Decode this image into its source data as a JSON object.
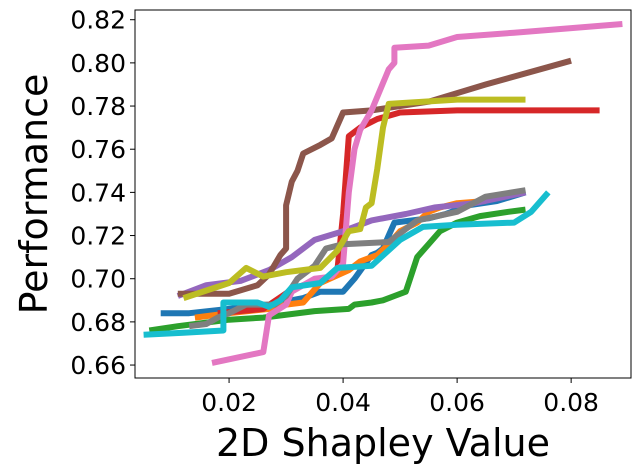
{
  "chart_data": {
    "type": "line",
    "title": "",
    "xlabel": "2D Shapley Value",
    "ylabel": "Performance",
    "xlim": [
      0.0035,
      0.0905
    ],
    "ylim": [
      0.654,
      0.8245
    ],
    "xticks": [
      0.02,
      0.04,
      0.06,
      0.08
    ],
    "xtick_labels": [
      "0.02",
      "0.04",
      "0.06",
      "0.08"
    ],
    "yticks": [
      0.66,
      0.68,
      0.7,
      0.72,
      0.74,
      0.76,
      0.78,
      0.8,
      0.82
    ],
    "ytick_labels": [
      "0.66",
      "0.68",
      "0.70",
      "0.72",
      "0.74",
      "0.76",
      "0.78",
      "0.80",
      "0.82"
    ],
    "grid": false,
    "legend": "none",
    "series": [
      {
        "name": "blue",
        "color": "#1f77b4",
        "points": [
          [
            0.008,
            0.684
          ],
          [
            0.013,
            0.684
          ],
          [
            0.02,
            0.686
          ],
          [
            0.027,
            0.688
          ],
          [
            0.033,
            0.691
          ],
          [
            0.036,
            0.694
          ],
          [
            0.04,
            0.694
          ],
          [
            0.042,
            0.7
          ],
          [
            0.045,
            0.711
          ],
          [
            0.046,
            0.712
          ],
          [
            0.047,
            0.714
          ],
          [
            0.048,
            0.72
          ],
          [
            0.049,
            0.726
          ],
          [
            0.055,
            0.728
          ],
          [
            0.058,
            0.73
          ],
          [
            0.062,
            0.734
          ],
          [
            0.067,
            0.736
          ],
          [
            0.072,
            0.74
          ]
        ]
      },
      {
        "name": "orange",
        "color": "#ff7f0e",
        "points": [
          [
            0.014,
            0.682
          ],
          [
            0.02,
            0.684
          ],
          [
            0.027,
            0.686
          ],
          [
            0.03,
            0.688
          ],
          [
            0.033,
            0.689
          ],
          [
            0.036,
            0.698
          ],
          [
            0.041,
            0.704
          ],
          [
            0.043,
            0.708
          ],
          [
            0.046,
            0.711
          ],
          [
            0.048,
            0.716
          ],
          [
            0.05,
            0.722
          ],
          [
            0.053,
            0.726
          ],
          [
            0.055,
            0.731
          ],
          [
            0.057,
            0.733
          ],
          [
            0.06,
            0.735
          ],
          [
            0.065,
            0.736
          ]
        ]
      },
      {
        "name": "green",
        "color": "#2ca02c",
        "points": [
          [
            0.006,
            0.676
          ],
          [
            0.011,
            0.678
          ],
          [
            0.02,
            0.681
          ],
          [
            0.026,
            0.682
          ],
          [
            0.035,
            0.685
          ],
          [
            0.041,
            0.686
          ],
          [
            0.042,
            0.688
          ],
          [
            0.045,
            0.689
          ],
          [
            0.047,
            0.69
          ],
          [
            0.049,
            0.692
          ],
          [
            0.051,
            0.694
          ],
          [
            0.052,
            0.702
          ],
          [
            0.053,
            0.71
          ],
          [
            0.055,
            0.716
          ],
          [
            0.057,
            0.722
          ],
          [
            0.06,
            0.726
          ],
          [
            0.064,
            0.729
          ],
          [
            0.069,
            0.731
          ],
          [
            0.072,
            0.732
          ]
        ]
      },
      {
        "name": "red",
        "color": "#d62728",
        "points": [
          [
            0.018,
            0.684
          ],
          [
            0.026,
            0.686
          ],
          [
            0.031,
            0.695
          ],
          [
            0.034,
            0.698
          ],
          [
            0.037,
            0.7
          ],
          [
            0.039,
            0.704
          ],
          [
            0.04,
            0.73
          ],
          [
            0.041,
            0.766
          ],
          [
            0.043,
            0.77
          ],
          [
            0.046,
            0.774
          ],
          [
            0.05,
            0.777
          ],
          [
            0.06,
            0.778
          ],
          [
            0.07,
            0.778
          ],
          [
            0.085,
            0.778
          ]
        ]
      },
      {
        "name": "purple",
        "color": "#9467bd",
        "points": [
          [
            0.011,
            0.692
          ],
          [
            0.016,
            0.697
          ],
          [
            0.022,
            0.699
          ],
          [
            0.027,
            0.704
          ],
          [
            0.031,
            0.71
          ],
          [
            0.035,
            0.718
          ],
          [
            0.04,
            0.722
          ],
          [
            0.045,
            0.727
          ],
          [
            0.051,
            0.73
          ],
          [
            0.056,
            0.733
          ],
          [
            0.063,
            0.735
          ],
          [
            0.072,
            0.74
          ]
        ]
      },
      {
        "name": "brown",
        "color": "#8c564b",
        "points": [
          [
            0.011,
            0.693
          ],
          [
            0.02,
            0.693
          ],
          [
            0.025,
            0.697
          ],
          [
            0.027,
            0.702
          ],
          [
            0.029,
            0.711
          ],
          [
            0.03,
            0.714
          ],
          [
            0.03,
            0.734
          ],
          [
            0.031,
            0.745
          ],
          [
            0.032,
            0.75
          ],
          [
            0.033,
            0.758
          ],
          [
            0.036,
            0.762
          ],
          [
            0.038,
            0.765
          ],
          [
            0.04,
            0.777
          ],
          [
            0.045,
            0.778
          ],
          [
            0.05,
            0.78
          ],
          [
            0.055,
            0.782
          ],
          [
            0.06,
            0.786
          ],
          [
            0.065,
            0.79
          ],
          [
            0.08,
            0.801
          ]
        ]
      },
      {
        "name": "pink",
        "color": "#e377c2",
        "points": [
          [
            0.017,
            0.661
          ],
          [
            0.026,
            0.666
          ],
          [
            0.027,
            0.683
          ],
          [
            0.03,
            0.688
          ],
          [
            0.031,
            0.694
          ],
          [
            0.033,
            0.697
          ],
          [
            0.035,
            0.7
          ],
          [
            0.038,
            0.701
          ],
          [
            0.04,
            0.707
          ],
          [
            0.041,
            0.74
          ],
          [
            0.042,
            0.76
          ],
          [
            0.043,
            0.769
          ],
          [
            0.045,
            0.778
          ],
          [
            0.048,
            0.797
          ],
          [
            0.049,
            0.8
          ],
          [
            0.049,
            0.807
          ],
          [
            0.055,
            0.808
          ],
          [
            0.06,
            0.812
          ],
          [
            0.07,
            0.814
          ],
          [
            0.089,
            0.818
          ]
        ]
      },
      {
        "name": "gray",
        "color": "#7f7f7f",
        "points": [
          [
            0.013,
            0.678
          ],
          [
            0.016,
            0.679
          ],
          [
            0.018,
            0.682
          ],
          [
            0.02,
            0.684
          ],
          [
            0.023,
            0.688
          ],
          [
            0.028,
            0.688
          ],
          [
            0.03,
            0.692
          ],
          [
            0.032,
            0.7
          ],
          [
            0.035,
            0.706
          ],
          [
            0.037,
            0.714
          ],
          [
            0.04,
            0.716
          ],
          [
            0.048,
            0.717
          ],
          [
            0.053,
            0.727
          ],
          [
            0.06,
            0.731
          ],
          [
            0.065,
            0.738
          ],
          [
            0.072,
            0.741
          ]
        ]
      },
      {
        "name": "olive",
        "color": "#bcbd22",
        "points": [
          [
            0.012,
            0.691
          ],
          [
            0.02,
            0.698
          ],
          [
            0.023,
            0.705
          ],
          [
            0.026,
            0.701
          ],
          [
            0.03,
            0.703
          ],
          [
            0.036,
            0.705
          ],
          [
            0.039,
            0.713
          ],
          [
            0.041,
            0.722
          ],
          [
            0.043,
            0.723
          ],
          [
            0.044,
            0.733
          ],
          [
            0.045,
            0.735
          ],
          [
            0.046,
            0.751
          ],
          [
            0.047,
            0.77
          ],
          [
            0.048,
            0.781
          ],
          [
            0.06,
            0.783
          ],
          [
            0.072,
            0.783
          ]
        ]
      },
      {
        "name": "cyan",
        "color": "#17becf",
        "points": [
          [
            0.005,
            0.674
          ],
          [
            0.012,
            0.675
          ],
          [
            0.019,
            0.676
          ],
          [
            0.019,
            0.689
          ],
          [
            0.025,
            0.689
          ],
          [
            0.027,
            0.687
          ],
          [
            0.029,
            0.69
          ],
          [
            0.031,
            0.696
          ],
          [
            0.036,
            0.698
          ],
          [
            0.039,
            0.705
          ],
          [
            0.045,
            0.706
          ],
          [
            0.05,
            0.718
          ],
          [
            0.054,
            0.724
          ],
          [
            0.06,
            0.725
          ],
          [
            0.07,
            0.726
          ],
          [
            0.073,
            0.731
          ],
          [
            0.076,
            0.74
          ]
        ]
      }
    ]
  }
}
